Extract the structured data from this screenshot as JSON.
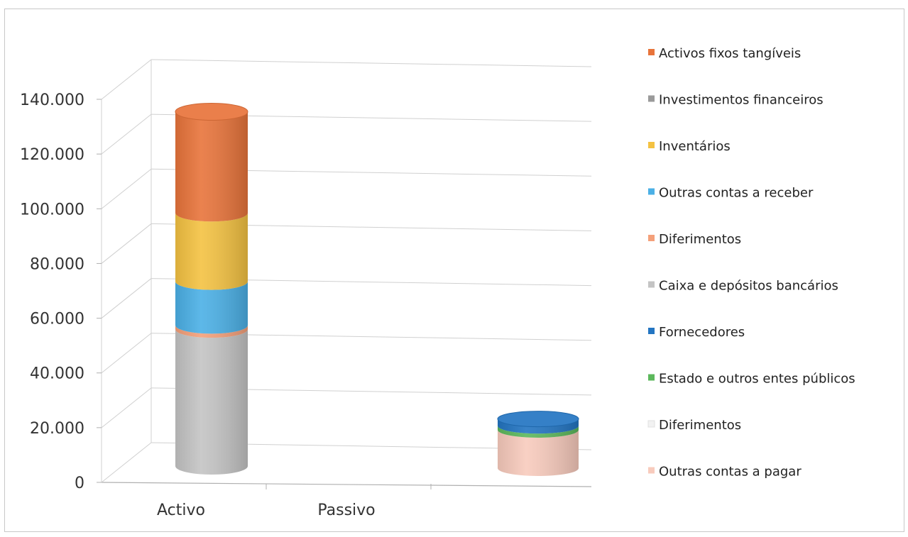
{
  "chart_data": {
    "type": "bar",
    "subtype": "stacked-3d-cylinder",
    "title": "",
    "xlabel": "",
    "ylabel": "",
    "ylim": [
      0,
      140000
    ],
    "yticks": [
      0,
      20000,
      40000,
      60000,
      80000,
      100000,
      120000,
      140000
    ],
    "ytick_labels": [
      "0",
      "20.000",
      "40.000",
      "60.000",
      "80.000",
      "100.000",
      "120.000",
      "140.000"
    ],
    "categories": [
      "Activo",
      "Passivo"
    ],
    "grid": true,
    "legend_position": "right",
    "series": [
      {
        "name": "Activos fixos tangíveis",
        "color": "#e8743b",
        "values": [
          37000,
          0
        ]
      },
      {
        "name": "Investimentos financeiros",
        "color": "#9a9a9a",
        "values": [
          0,
          0
        ]
      },
      {
        "name": "Inventários",
        "color": "#f4c242",
        "values": [
          25000,
          0
        ]
      },
      {
        "name": "Outras contas a receber",
        "color": "#4bb0e6",
        "values": [
          16000,
          0
        ]
      },
      {
        "name": "Diferimentos",
        "color": "#f4a07a",
        "values": [
          1500,
          0
        ]
      },
      {
        "name": "Caixa e depósitos bancários",
        "color": "#c4c4c4",
        "values": [
          50000,
          0
        ]
      },
      {
        "name": "Fornecedores",
        "color": "#2375c2",
        "values": [
          0,
          2500
        ]
      },
      {
        "name": "Estado e outros entes públicos",
        "color": "#5cb85c",
        "values": [
          0,
          1500
        ]
      },
      {
        "name": "Diferimentos",
        "color": "#f2f2f2",
        "values": [
          0,
          0
        ]
      },
      {
        "name": "Outras contas a pagar",
        "color": "#f8cbbd",
        "values": [
          0,
          14000
        ]
      }
    ],
    "stack_order_bottom_to_top": [
      5,
      4,
      3,
      2,
      1,
      0,
      9,
      8,
      7,
      6
    ]
  }
}
